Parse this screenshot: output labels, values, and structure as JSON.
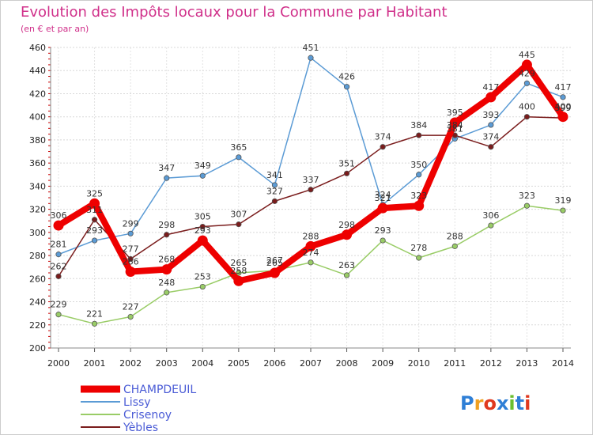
{
  "chart_data": {
    "type": "line",
    "title": "Evolution des Impôts locaux pour la Commune par Habitant",
    "subtitle": "(en € et par an)",
    "x": [
      "2000",
      "2001",
      "2002",
      "2003",
      "2004",
      "2005",
      "2006",
      "2007",
      "2008",
      "2009",
      "2010",
      "2011",
      "2012",
      "2013",
      "2014"
    ],
    "ylim": [
      200,
      460
    ],
    "yticks": [
      200,
      220,
      240,
      260,
      280,
      300,
      320,
      340,
      360,
      380,
      400,
      420,
      440,
      460
    ],
    "grid": true,
    "legend_position": "bottom-left",
    "series": [
      {
        "name": "CHAMPDEUIL",
        "color": "#ee0000",
        "values": [
          306,
          325,
          266,
          268,
          293,
          258,
          265,
          288,
          298,
          321,
          323,
          395,
          417,
          445,
          400
        ]
      },
      {
        "name": "Lissy",
        "color": "#5b9bd5",
        "values": [
          281,
          293,
          299,
          347,
          349,
          365,
          341,
          451,
          426,
          324,
          350,
          381,
          393,
          429,
          417
        ]
      },
      {
        "name": "Crisenoy",
        "color": "#99cc66",
        "values": [
          229,
          221,
          227,
          248,
          253,
          265,
          267,
          274,
          263,
          293,
          278,
          288,
          306,
          323,
          319
        ]
      },
      {
        "name": "Yèbles",
        "color": "#7a1c1c",
        "values": [
          262,
          311,
          277,
          298,
          305,
          307,
          327,
          337,
          351,
          374,
          384,
          384,
          374,
          400,
          399
        ]
      }
    ]
  },
  "logo": {
    "letters": [
      "P",
      "r",
      "o",
      "x",
      "i",
      "t",
      "i"
    ],
    "colors": [
      "#2f7fd6",
      "#f0a020",
      "#e0391f",
      "#2f7fd6",
      "#6bbf2f",
      "#2f7fd6",
      "#e0391f"
    ]
  }
}
